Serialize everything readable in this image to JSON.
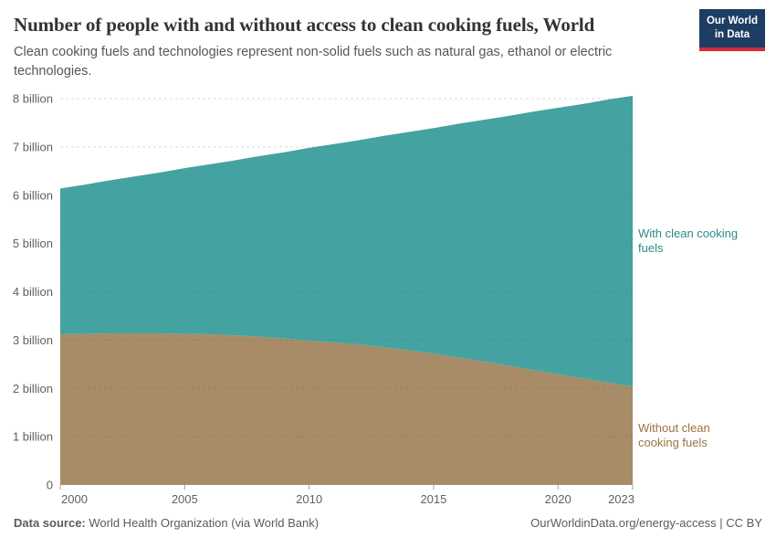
{
  "header": {
    "title": "Number of people with and without access to clean cooking fuels, World",
    "subtitle": "Clean cooking fuels and technologies represent non-solid fuels such as natural gas, ethanol or electric technologies.",
    "logo": {
      "line1": "Our World",
      "line2": "in Data",
      "bg_color": "#1d3d63",
      "accent_color": "#d22e3b"
    }
  },
  "footer": {
    "source_label": "Data source:",
    "source_value": " World Health Organization (via World Bank)",
    "rights": "OurWorldinData.org/energy-access | CC BY"
  },
  "chart_data": {
    "type": "area",
    "stacked": true,
    "title": "Number of people with and without access to clean cooking fuels, World",
    "xlabel": "",
    "ylabel": "",
    "ylim": [
      0,
      8
    ],
    "grid": "dashed-horizontal",
    "legend_position": "right-of-plot",
    "x": [
      2000,
      2001,
      2002,
      2003,
      2004,
      2005,
      2006,
      2007,
      2008,
      2009,
      2010,
      2011,
      2012,
      2013,
      2014,
      2015,
      2016,
      2017,
      2018,
      2019,
      2020,
      2021,
      2022,
      2023
    ],
    "x_ticks": [
      2000,
      2005,
      2010,
      2015,
      2020,
      2023
    ],
    "y_ticks": [
      {
        "value": 0,
        "label": "0"
      },
      {
        "value": 1,
        "label": "1 billion"
      },
      {
        "value": 2,
        "label": "2 billion"
      },
      {
        "value": 3,
        "label": "3 billion"
      },
      {
        "value": 4,
        "label": "4 billion"
      },
      {
        "value": 5,
        "label": "5 billion"
      },
      {
        "value": 6,
        "label": "6 billion"
      },
      {
        "value": 7,
        "label": "7 billion"
      },
      {
        "value": 8,
        "label": "8 billion"
      }
    ],
    "series": [
      {
        "name": "Without clean cooking fuels",
        "color": "#a78c67",
        "label_color": "#9a7340",
        "unit": "billion people",
        "values": [
          3.12,
          3.13,
          3.14,
          3.14,
          3.14,
          3.13,
          3.12,
          3.1,
          3.07,
          3.03,
          2.99,
          2.95,
          2.91,
          2.85,
          2.79,
          2.72,
          2.64,
          2.56,
          2.47,
          2.38,
          2.29,
          2.21,
          2.12,
          2.04
        ]
      },
      {
        "name": "With clean cooking fuels",
        "color": "#44a3a0",
        "label_color": "#2d8a86",
        "unit": "billion people",
        "values": [
          3.02,
          3.09,
          3.17,
          3.25,
          3.33,
          3.43,
          3.52,
          3.62,
          3.74,
          3.86,
          3.99,
          4.11,
          4.23,
          4.38,
          4.52,
          4.67,
          4.84,
          5.0,
          5.17,
          5.35,
          5.52,
          5.68,
          5.86,
          6.02
        ]
      }
    ],
    "axis_text_color": "#606060",
    "gridline_color": "#5b5b5b"
  }
}
